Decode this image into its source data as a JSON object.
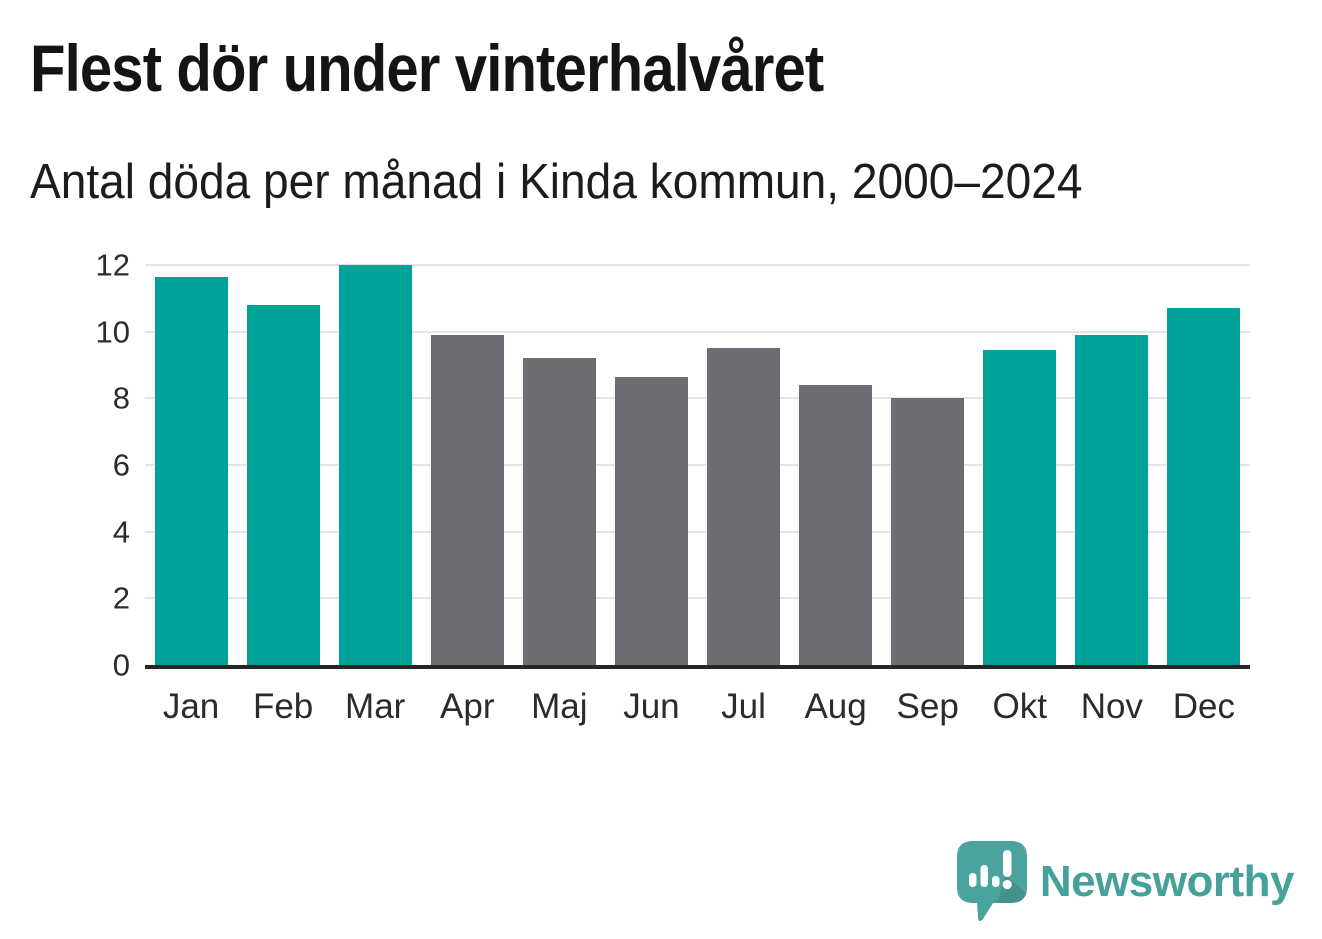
{
  "title": "Flest dör under vinterhalvåret",
  "subtitle": "Antal döda per månad i Kinda kommun, 2000–2024",
  "branding": {
    "name": "Newsworthy",
    "logo_icon": "speech-bubble-bar-chart-exclamation-icon"
  },
  "colors": {
    "highlight_teal": "#00a39a",
    "muted_gray": "#6e6c72",
    "gridline": "#e4e4e4",
    "axis_line": "#262626",
    "text": "#1c1c1c",
    "brand_teal": "#46a19b",
    "logo_bubble": "#4ba39d"
  },
  "chart_data": {
    "type": "bar",
    "title": "Flest dör under vinterhalvåret",
    "subtitle": "Antal döda per månad i Kinda kommun, 2000–2024",
    "categories": [
      "Jan",
      "Feb",
      "Mar",
      "Apr",
      "Maj",
      "Jun",
      "Jul",
      "Aug",
      "Sep",
      "Okt",
      "Nov",
      "Dec"
    ],
    "values": [
      11.65,
      10.8,
      12.0,
      9.9,
      9.2,
      8.65,
      9.5,
      8.4,
      8.0,
      9.45,
      9.9,
      10.7
    ],
    "highlighted_categories": [
      "Jan",
      "Feb",
      "Mar",
      "Okt",
      "Nov",
      "Dec"
    ],
    "xlabel": "",
    "ylabel": "",
    "ylim": [
      0,
      12
    ],
    "yticks": [
      0,
      2,
      4,
      6,
      8,
      10,
      12
    ],
    "grid": "horizontal",
    "legend": "none"
  }
}
